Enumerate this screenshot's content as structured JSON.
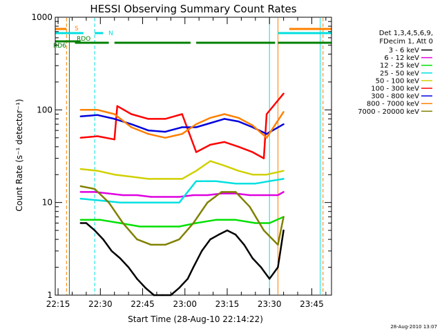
{
  "chart_data": {
    "type": "line",
    "title": "HESSI Observing Summary Count Rates",
    "xlabel": "Start Time (28-Aug-10 22:14:22)",
    "ylabel": "Count Rate (s⁻¹ detector⁻¹)",
    "yscale": "log",
    "ylim": [
      1,
      1000
    ],
    "xlim": [
      "22:14",
      "23:52"
    ],
    "x_ticks": [
      "22:15",
      "22:30",
      "22:45",
      "23:00",
      "23:15",
      "23:30",
      "23:45"
    ],
    "y_ticks": [
      "1",
      "10",
      "100",
      "1000"
    ],
    "timestamp": "28-Aug-2010 13:07",
    "legend_position": "right",
    "legend": {
      "header": [
        "Det 1,3,4,5,6,9,",
        "FDecim 1, Att 0"
      ]
    },
    "series": [
      {
        "name": "3 - 6 keV",
        "color": "#000000",
        "x": [
          "22:23",
          "22:25",
          "22:28",
          "22:31",
          "22:34",
          "22:37",
          "22:40",
          "22:43",
          "22:46",
          "22:49",
          "22:52",
          "22:55",
          "22:58",
          "23:01",
          "23:03",
          "23:06",
          "23:09",
          "23:12",
          "23:15",
          "23:18",
          "23:21",
          "23:24",
          "23:27",
          "23:30",
          "23:33",
          "23:35"
        ],
        "y": [
          6,
          6,
          5,
          4,
          3,
          2.5,
          2,
          1.5,
          1.2,
          1,
          1,
          1,
          1.2,
          1.5,
          2,
          3,
          4,
          4.5,
          5,
          4.5,
          3.5,
          2.5,
          2,
          1.5,
          2,
          5
        ]
      },
      {
        "name": "6 - 12 keV",
        "color": "#e000e0",
        "x": [
          "22:23",
          "22:28",
          "22:33",
          "22:38",
          "22:43",
          "22:48",
          "22:53",
          "22:58",
          "23:03",
          "23:08",
          "23:13",
          "23:18",
          "23:23",
          "23:28",
          "23:33",
          "23:35"
        ],
        "y": [
          13,
          13,
          12.5,
          12,
          12,
          11.5,
          11.5,
          11.5,
          12,
          12,
          12.5,
          12.5,
          12,
          12,
          12,
          13
        ]
      },
      {
        "name": "12 - 25 keV",
        "color": "#00e000",
        "x": [
          "22:23",
          "22:30",
          "22:37",
          "22:44",
          "22:51",
          "22:58",
          "23:04",
          "23:11",
          "23:18",
          "23:25",
          "23:30",
          "23:35"
        ],
        "y": [
          6.5,
          6.5,
          6,
          5.5,
          5.5,
          5.5,
          6,
          6.5,
          6.5,
          6,
          6,
          7
        ]
      },
      {
        "name": "25 - 50 keV",
        "color": "#00e0e0",
        "x": [
          "22:23",
          "22:30",
          "22:37",
          "22:44",
          "22:51",
          "22:58",
          "23:04",
          "23:11",
          "23:18",
          "23:25",
          "23:30",
          "23:35"
        ],
        "y": [
          11,
          10.5,
          10,
          10,
          10,
          10,
          17,
          17,
          16,
          16,
          17,
          18
        ]
      },
      {
        "name": "50 - 100 keV",
        "color": "#d0d000",
        "x": [
          "22:23",
          "22:29",
          "22:35",
          "22:41",
          "22:47",
          "22:53",
          "22:59",
          "23:04",
          "23:09",
          "23:14",
          "23:19",
          "23:24",
          "23:29",
          "23:35"
        ],
        "y": [
          23,
          22,
          20,
          19,
          18,
          18,
          18,
          22,
          28,
          25,
          22,
          20,
          20,
          22
        ]
      },
      {
        "name": "100 - 300 keV",
        "color": "#ff0000",
        "x": [
          "22:23",
          "22:29",
          "22:35",
          "22:36",
          "22:41",
          "22:47",
          "22:53",
          "22:59",
          "23:04",
          "23:09",
          "23:14",
          "23:19",
          "23:24",
          "23:28",
          "23:29",
          "23:35"
        ],
        "y": [
          50,
          52,
          48,
          110,
          90,
          80,
          80,
          90,
          35,
          42,
          45,
          40,
          35,
          30,
          90,
          150
        ]
      },
      {
        "name": "300 - 800 keV",
        "color": "#0000dd",
        "x": [
          "22:23",
          "22:29",
          "22:35",
          "22:41",
          "22:47",
          "22:53",
          "22:59",
          "23:04",
          "23:09",
          "23:14",
          "23:19",
          "23:24",
          "23:29",
          "23:35"
        ],
        "y": [
          85,
          88,
          80,
          70,
          60,
          58,
          65,
          65,
          72,
          80,
          75,
          65,
          55,
          70
        ]
      },
      {
        "name": "800 - 7000 keV",
        "color": "#ff8000",
        "x": [
          "22:23",
          "22:29",
          "22:35",
          "22:41",
          "22:47",
          "22:53",
          "22:59",
          "23:04",
          "23:09",
          "23:14",
          "23:19",
          "23:24",
          "23:29",
          "23:35"
        ],
        "y": [
          100,
          100,
          90,
          65,
          55,
          50,
          55,
          70,
          82,
          90,
          82,
          68,
          50,
          95
        ]
      },
      {
        "name": "7000 - 20000 keV",
        "color": "#808000",
        "x": [
          "22:23",
          "22:28",
          "22:33",
          "22:38",
          "22:43",
          "22:48",
          "22:53",
          "22:58",
          "23:03",
          "23:08",
          "23:13",
          "23:18",
          "23:23",
          "23:28",
          "23:33",
          "23:35"
        ],
        "y": [
          15,
          14,
          10,
          6,
          4,
          3.5,
          3.5,
          4,
          6,
          10,
          13,
          13,
          9,
          5,
          3.5,
          7
        ]
      }
    ],
    "state_bars": [
      {
        "label": "S",
        "color": "#ff8000",
        "intervals": [
          [
            "22:14",
            "22:18"
          ],
          [
            "23:37",
            "23:52"
          ]
        ]
      },
      {
        "label": "N",
        "color": "#00e0e0",
        "intervals": [
          [
            "22:14",
            "22:24"
          ],
          [
            "22:28",
            "22:31"
          ],
          [
            "23:33",
            "23:52"
          ]
        ]
      },
      {
        "label": "SAA",
        "color": "#008000",
        "intervals": [
          [
            "22:14",
            "22:19"
          ]
        ]
      },
      {
        "label": "RDO",
        "color": "#008000",
        "intervals": [
          [
            "22:19",
            "22:23"
          ]
        ]
      },
      {
        "label": "RD6",
        "color": "#008000",
        "intervals": [
          [
            "22:21",
            "22:33"
          ],
          [
            "22:35",
            "23:02"
          ],
          [
            "23:04",
            "23:32"
          ],
          [
            "23:33",
            "23:52"
          ]
        ]
      }
    ],
    "flags": [
      {
        "label": "S",
        "color": "#ff8000"
      },
      {
        "label": "N",
        "color": "#00e0e0"
      },
      {
        "label": "RDO",
        "color": "#008000"
      },
      {
        "label": "RD6",
        "color": "#008000"
      }
    ],
    "vertical_lines": [
      {
        "x": "22:14",
        "color": "#00e0e0",
        "style": "solid"
      },
      {
        "x": "22:18",
        "color": "#ff8000",
        "style": "dashed"
      },
      {
        "x": "22:19",
        "color": "#008000",
        "style": "solid"
      },
      {
        "x": "22:28",
        "color": "#00e0e0",
        "style": "dashed"
      },
      {
        "x": "23:30",
        "color": "#00e0e0",
        "style": "solid"
      },
      {
        "x": "23:33",
        "color": "#ff8000",
        "style": "solid"
      },
      {
        "x": "23:48",
        "color": "#00e0e0",
        "style": "solid"
      },
      {
        "x": "23:49",
        "color": "#ff8000",
        "style": "dashed"
      }
    ]
  }
}
